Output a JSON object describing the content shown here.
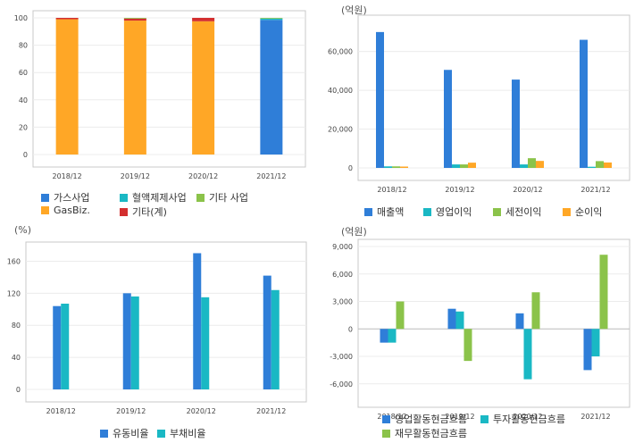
{
  "chart_data": [
    {
      "id": "p1",
      "type": "bar",
      "stacked": true,
      "unit_label": "",
      "categories": [
        "2018/12",
        "2019/12",
        "2020/12",
        "2021/12"
      ],
      "ylim": [
        0,
        100
      ],
      "yticks": [
        0,
        20,
        40,
        60,
        80,
        100
      ],
      "series": [
        {
          "name": "GasBiz.",
          "color": "#ffa726",
          "values": [
            99,
            98,
            97.5,
            0
          ]
        },
        {
          "name": "기타(계)",
          "color": "#d32f2f",
          "values": [
            1,
            1.5,
            2.5,
            0
          ]
        },
        {
          "name": "가스사업",
          "color": "#2f7ed8",
          "values": [
            0,
            0,
            0,
            98.5
          ]
        },
        {
          "name": "혈액제제사업",
          "color": "#1ab8c4",
          "values": [
            0,
            0,
            0,
            1
          ]
        },
        {
          "name": "기타 사업",
          "color": "#8bc34a",
          "values": [
            0,
            0.5,
            0,
            0.5
          ]
        }
      ],
      "legend": [
        {
          "label": "가스사업",
          "color": "#2f7ed8"
        },
        {
          "label": "혈액제제사업",
          "color": "#1ab8c4"
        },
        {
          "label": "기타 사업",
          "color": "#8bc34a"
        },
        {
          "label": "GasBiz.",
          "color": "#ffa726"
        },
        {
          "label": "기타(계)",
          "color": "#d32f2f"
        }
      ]
    },
    {
      "id": "p2",
      "type": "bar",
      "unit_label": "(억원)",
      "categories": [
        "2018/12",
        "2019/12",
        "2020/12",
        "2021/12"
      ],
      "ylim": [
        0,
        75000
      ],
      "yticks": [
        0,
        20000,
        40000,
        60000
      ],
      "ytick_labels": [
        "0",
        "20,000",
        "40,000",
        "60,000"
      ],
      "series": [
        {
          "name": "매출액",
          "color": "#2f7ed8",
          "values": [
            70000,
            50500,
            45500,
            66000
          ]
        },
        {
          "name": "영업이익",
          "color": "#1ab8c4",
          "values": [
            800,
            1800,
            1800,
            600
          ]
        },
        {
          "name": "세전이익",
          "color": "#8bc34a",
          "values": [
            800,
            1800,
            5000,
            3500
          ]
        },
        {
          "name": "순이익",
          "color": "#ffa726",
          "values": [
            700,
            2700,
            3600,
            2800
          ]
        }
      ]
    },
    {
      "id": "p3",
      "type": "bar",
      "unit_label": "(%)",
      "categories": [
        "2018/12",
        "2019/12",
        "2020/12",
        "2021/12"
      ],
      "ylim": [
        0,
        175
      ],
      "yticks": [
        0,
        40,
        80,
        120,
        160
      ],
      "series": [
        {
          "name": "유동비율",
          "color": "#2f7ed8",
          "values": [
            104,
            120,
            170,
            142
          ]
        },
        {
          "name": "부채비율",
          "color": "#1ab8c4",
          "values": [
            107,
            116,
            115,
            124
          ]
        }
      ]
    },
    {
      "id": "p4",
      "type": "bar",
      "unit_label": "(억원)",
      "categories": [
        "2018/12",
        "2019/12",
        "2020/12",
        "2021/12"
      ],
      "ylim": [
        -7000,
        9000
      ],
      "yticks": [
        -6000,
        -3000,
        0,
        3000,
        6000,
        9000
      ],
      "ytick_labels": [
        "-6,000",
        "-3,000",
        "0",
        "3,000",
        "6,000",
        "9,000"
      ],
      "series": [
        {
          "name": "영업활동현금흐름",
          "color": "#2f7ed8",
          "values": [
            -1500,
            2200,
            1700,
            -4500
          ]
        },
        {
          "name": "투자활동현금흐름",
          "color": "#1ab8c4",
          "values": [
            -1500,
            1900,
            -5500,
            -3000
          ]
        },
        {
          "name": "재무활동현금흐름",
          "color": "#8bc34a",
          "values": [
            3000,
            -3500,
            4000,
            8100
          ]
        }
      ]
    }
  ]
}
